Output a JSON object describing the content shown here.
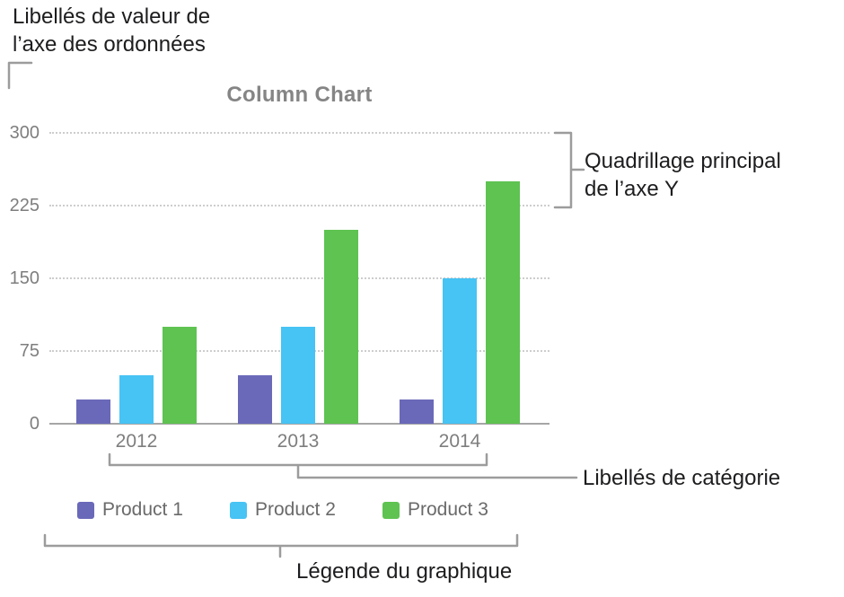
{
  "callouts": {
    "y_value_labels": [
      "Libellés de valeur de",
      "l’axe des ordonnées"
    ],
    "y_gridlines": [
      "Quadrillage principal",
      "de l’axe Y"
    ],
    "category_labels": "Libellés de catégorie",
    "legend": "Légende du graphique"
  },
  "chart_data": {
    "type": "bar",
    "title": "Column Chart",
    "categories": [
      "2012",
      "2013",
      "2014"
    ],
    "series": [
      {
        "name": "Product 1",
        "color": "#6a69b9",
        "values": [
          25,
          50,
          25
        ]
      },
      {
        "name": "Product 2",
        "color": "#47c3f4",
        "values": [
          50,
          100,
          150
        ]
      },
      {
        "name": "Product 3",
        "color": "#5ec351",
        "values": [
          100,
          200,
          250
        ]
      }
    ],
    "ylim": [
      0,
      300
    ],
    "yticks": [
      300,
      225,
      150,
      75,
      0
    ],
    "grid": "dotted-horizontal-major",
    "legend_position": "below-chart",
    "axis_text_color": "#7e7e7e"
  }
}
